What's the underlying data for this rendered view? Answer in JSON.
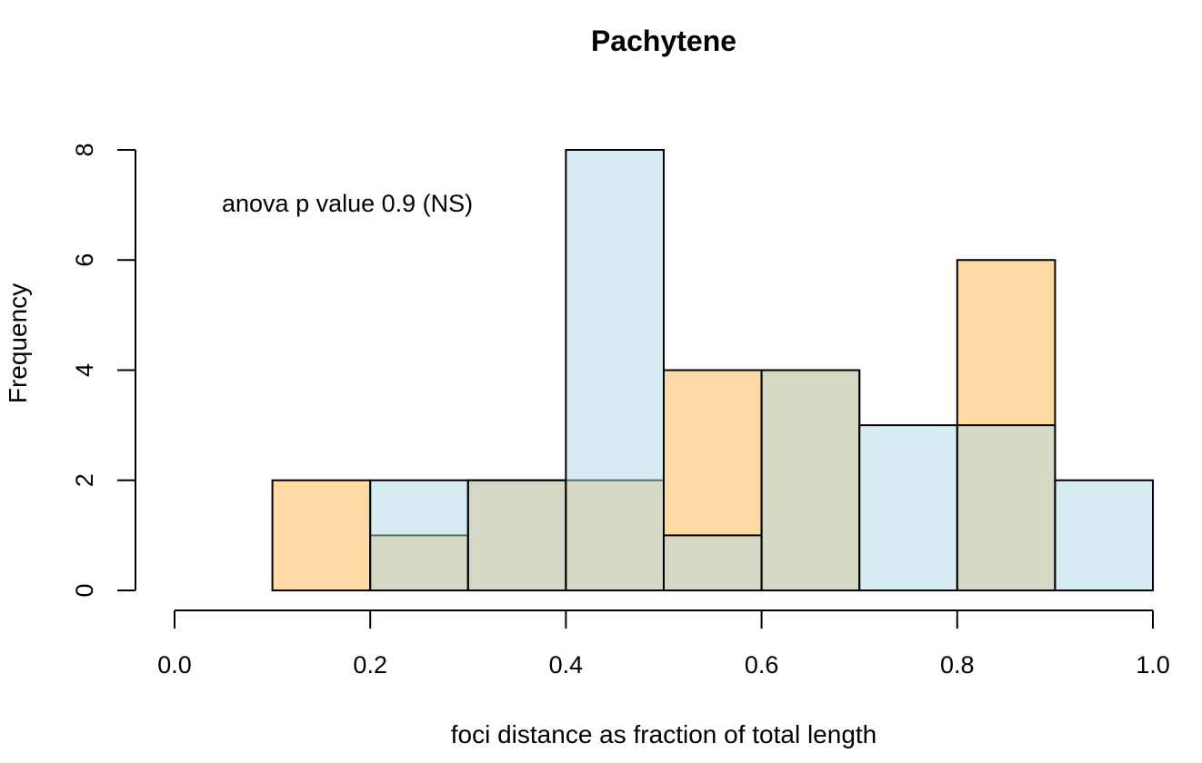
{
  "chart_data": {
    "type": "bar",
    "title": "Pachytene",
    "xlabel": "foci distance as fraction of total length",
    "ylabel": "Frequency",
    "annotation": "anova p value 0.9 (NS)",
    "xlim": [
      0.0,
      1.0
    ],
    "ylim": [
      0,
      8
    ],
    "x_ticks": [
      "0.0",
      "0.2",
      "0.4",
      "0.6",
      "0.8",
      "1.0"
    ],
    "y_ticks": [
      "0",
      "2",
      "4",
      "6",
      "8"
    ],
    "bin_edges": [
      0.1,
      0.2,
      0.3,
      0.4,
      0.5,
      0.6,
      0.7,
      0.8,
      0.9,
      1.0
    ],
    "series": [
      {
        "values": [
          2,
          1,
          2,
          2,
          4,
          4,
          0,
          6,
          0
        ],
        "color": "#fdd9a4"
      },
      {
        "values": [
          0,
          2,
          2,
          8,
          1,
          4,
          3,
          3,
          2
        ],
        "color": "#add8e6",
        "opacity": 0.5
      }
    ],
    "grid": false
  }
}
